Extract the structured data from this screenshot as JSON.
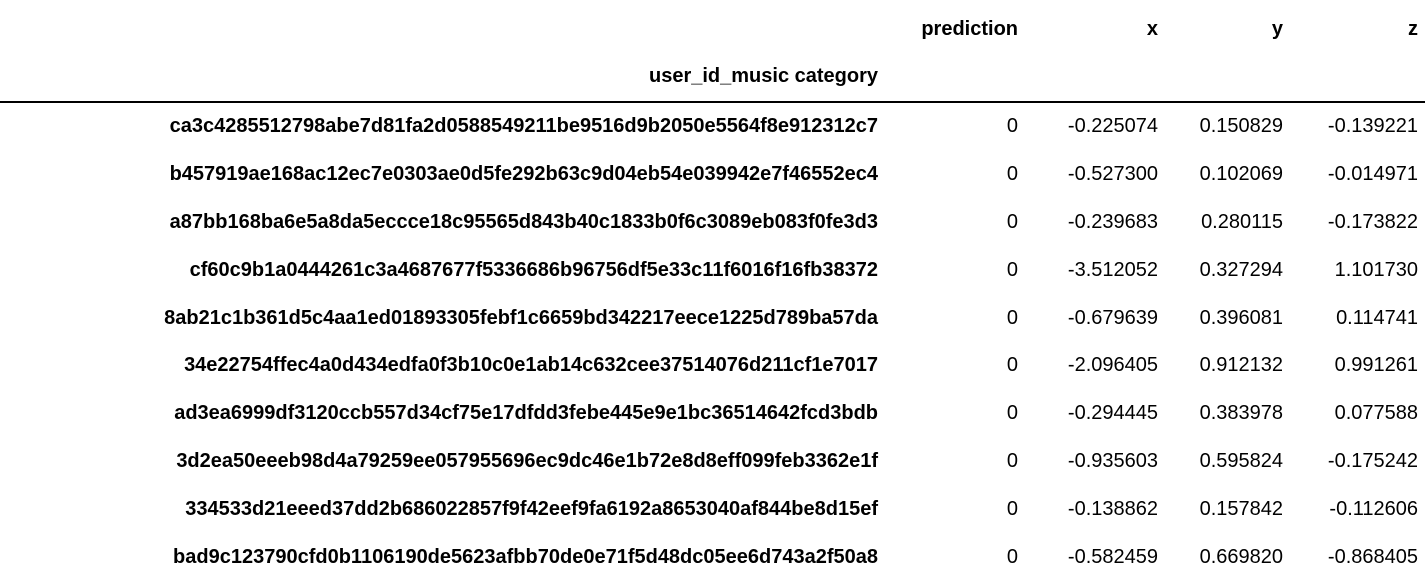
{
  "table": {
    "columns": [
      "prediction",
      "x",
      "y",
      "z"
    ],
    "index_name": "user_id_music category",
    "rows": [
      {
        "index": "ca3c4285512798abe7d81fa2d0588549211be9516d9b2050e5564f8e912312c7",
        "prediction": "0",
        "x": "-0.225074",
        "y": "0.150829",
        "z": "-0.139221"
      },
      {
        "index": "b457919ae168ac12ec7e0303ae0d5fe292b63c9d04eb54e039942e7f46552ec4",
        "prediction": "0",
        "x": "-0.527300",
        "y": "0.102069",
        "z": "-0.014971"
      },
      {
        "index": "a87bb168ba6e5a8da5eccce18c95565d843b40c1833b0f6c3089eb083f0fe3d3",
        "prediction": "0",
        "x": "-0.239683",
        "y": "0.280115",
        "z": "-0.173822"
      },
      {
        "index": "cf60c9b1a0444261c3a4687677f5336686b96756df5e33c11f6016f16fb38372",
        "prediction": "0",
        "x": "-3.512052",
        "y": "0.327294",
        "z": "1.101730"
      },
      {
        "index": "8ab21c1b361d5c4aa1ed01893305febf1c6659bd342217eece1225d789ba57da",
        "prediction": "0",
        "x": "-0.679639",
        "y": "0.396081",
        "z": "0.114741"
      },
      {
        "index": "34e22754ffec4a0d434edfa0f3b10c0e1ab14c632cee37514076d211cf1e7017",
        "prediction": "0",
        "x": "-2.096405",
        "y": "0.912132",
        "z": "0.991261"
      },
      {
        "index": "ad3ea6999df3120ccb557d34cf75e17dfdd3febe445e9e1bc36514642fcd3bdb",
        "prediction": "0",
        "x": "-0.294445",
        "y": "0.383978",
        "z": "0.077588"
      },
      {
        "index": "3d2ea50eeeb98d4a79259ee057955696ec9dc46e1b72e8d8eff099feb3362e1f",
        "prediction": "0",
        "x": "-0.935603",
        "y": "0.595824",
        "z": "-0.175242"
      },
      {
        "index": "334533d21eeed37dd2b686022857f9f42eef9fa6192a8653040af844be8d15ef",
        "prediction": "0",
        "x": "-0.138862",
        "y": "0.157842",
        "z": "-0.112606"
      },
      {
        "index": "bad9c123790cfd0b1106190de5623afbb70de0e71f5d48dc05ee6d743a2f50a8",
        "prediction": "0",
        "x": "-0.582459",
        "y": "0.669820",
        "z": "-0.868405"
      }
    ]
  }
}
